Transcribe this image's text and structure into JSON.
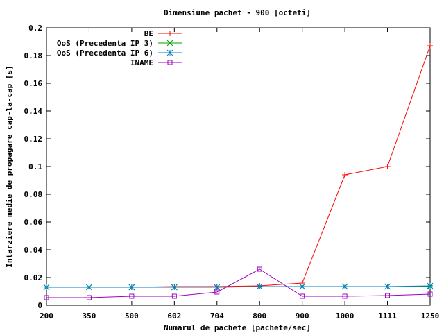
{
  "chart_data": {
    "type": "line",
    "title": "Dimensiune pachet - 900 [octeti]",
    "xlabel": "Numarul de pachete [pachete/sec]",
    "ylabel": "Intarziere medie de propagare cap-la-cap [s]",
    "categories": [
      "200",
      "350",
      "500",
      "602",
      "704",
      "800",
      "900",
      "1000",
      "1111",
      "1250"
    ],
    "ylim": [
      0,
      0.2
    ],
    "yticks": [
      "0",
      "0.02",
      "0.04",
      "0.06",
      "0.08",
      "0.1",
      "0.12",
      "0.14",
      "0.16",
      "0.18",
      "0.2"
    ],
    "grid": false,
    "legend_position": "top-left",
    "series": [
      {
        "name": "BE",
        "color": "#ff0000",
        "marker": "plus",
        "values": [
          0.013,
          0.013,
          0.013,
          0.0135,
          0.0135,
          0.014,
          0.016,
          0.094,
          0.1,
          0.187
        ]
      },
      {
        "name": "QoS (Precedenta IP 3)",
        "color": "#00a000",
        "marker": "cross",
        "values": [
          0.013,
          0.013,
          0.013,
          0.013,
          0.013,
          0.0135,
          0.0135,
          0.0135,
          0.0135,
          0.0135
        ]
      },
      {
        "name": "QoS (Precedenta IP 6)",
        "color": "#0080c0",
        "marker": "star",
        "values": [
          0.013,
          0.013,
          0.013,
          0.013,
          0.013,
          0.0135,
          0.0135,
          0.0135,
          0.0135,
          0.014
        ]
      },
      {
        "name": "INAME",
        "color": "#a000c0",
        "marker": "square",
        "values": [
          0.0055,
          0.0055,
          0.0065,
          0.0065,
          0.0095,
          0.026,
          0.0065,
          0.0065,
          0.007,
          0.008
        ]
      }
    ]
  }
}
